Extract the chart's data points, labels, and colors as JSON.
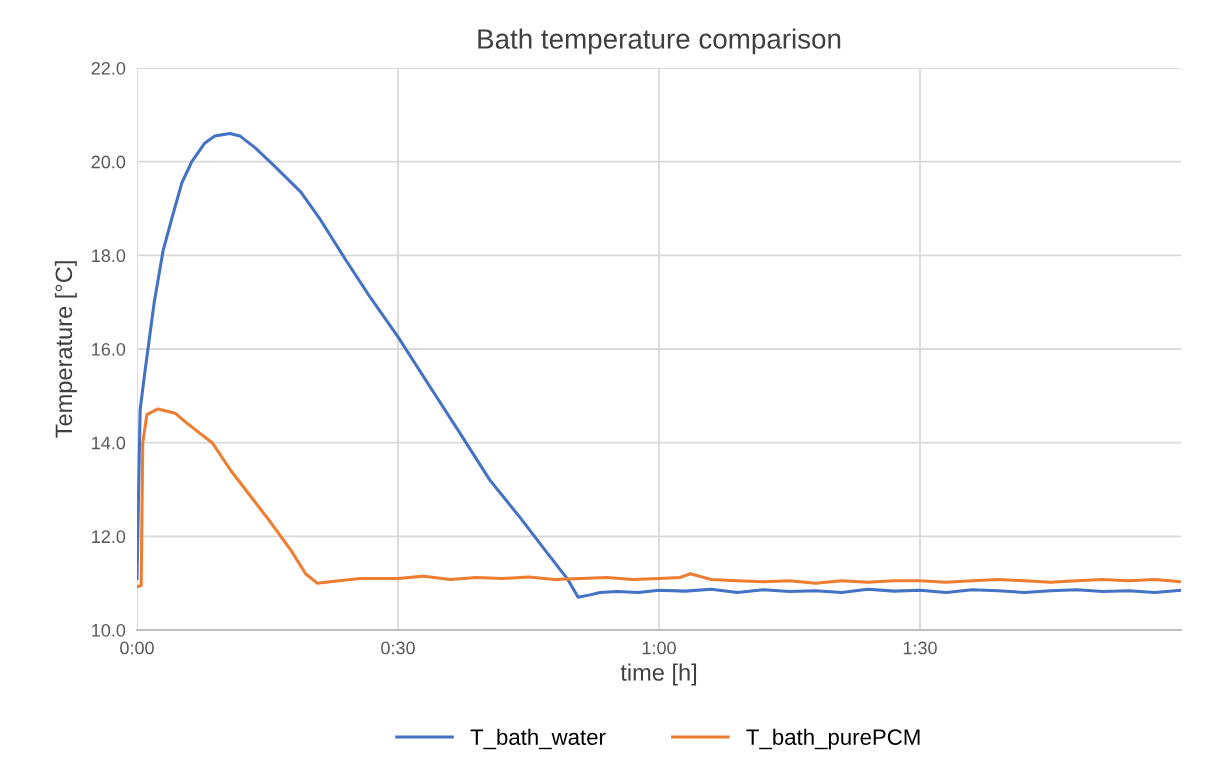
{
  "chart_data": {
    "type": "line",
    "title": "Bath temperature comparison",
    "xlabel": "time [h]",
    "ylabel": "Temperature [°C]",
    "xlim": [
      0,
      2
    ],
    "xticks": [
      {
        "value": 0,
        "label": "0:00"
      },
      {
        "value": 0.5,
        "label": "0:30"
      },
      {
        "value": 1,
        "label": "1:00"
      },
      {
        "value": 1.5,
        "label": "1:30"
      }
    ],
    "ylim": [
      10,
      22
    ],
    "yticks": [
      {
        "value": 10,
        "label": "10.0"
      },
      {
        "value": 12,
        "label": "12.0"
      },
      {
        "value": 14,
        "label": "14.0"
      },
      {
        "value": 16,
        "label": "16.0"
      },
      {
        "value": 18,
        "label": "18.0"
      },
      {
        "value": 20,
        "label": "20.0"
      },
      {
        "value": 22,
        "label": "22.0"
      }
    ],
    "grid": true,
    "legend": "bottom",
    "marker": "none",
    "line_style": "solid",
    "series": [
      {
        "name": "T_bath_water",
        "color": "#4472c4",
        "x": [
          0,
          0.006,
          0.015,
          0.021,
          0.033,
          0.05,
          0.067,
          0.086,
          0.105,
          0.13,
          0.149,
          0.178,
          0.197,
          0.226,
          0.264,
          0.314,
          0.352,
          0.4,
          0.447,
          0.5,
          0.561,
          0.619,
          0.676,
          0.734,
          0.782,
          0.826,
          0.845,
          0.868,
          0.887,
          0.92,
          0.96,
          1.0,
          1.05,
          1.1,
          1.15,
          1.2,
          1.25,
          1.3,
          1.35,
          1.4,
          1.45,
          1.5,
          1.55,
          1.6,
          1.65,
          1.7,
          1.75,
          1.8,
          1.85,
          1.9,
          1.95,
          2.0
        ],
        "values": [
          11.1,
          14.7,
          15.5,
          16.0,
          17.0,
          18.1,
          18.8,
          19.55,
          20.0,
          20.4,
          20.55,
          20.6,
          20.55,
          20.3,
          19.9,
          19.35,
          18.75,
          17.9,
          17.1,
          16.26,
          15.2,
          14.2,
          13.2,
          12.4,
          11.7,
          11.07,
          10.7,
          10.75,
          10.8,
          10.82,
          10.8,
          10.85,
          10.83,
          10.87,
          10.8,
          10.86,
          10.82,
          10.84,
          10.8,
          10.87,
          10.83,
          10.85,
          10.8,
          10.86,
          10.84,
          10.8,
          10.84,
          10.86,
          10.82,
          10.84,
          10.8,
          10.85
        ]
      },
      {
        "name": "T_bath_purePCM",
        "color": "#ed7d31",
        "x": [
          0,
          0.008,
          0.011,
          0.019,
          0.04,
          0.073,
          0.092,
          0.117,
          0.144,
          0.18,
          0.218,
          0.256,
          0.295,
          0.323,
          0.345,
          0.37,
          0.427,
          0.5,
          0.55,
          0.6,
          0.65,
          0.7,
          0.75,
          0.8,
          0.85,
          0.9,
          0.95,
          1.0,
          1.04,
          1.06,
          1.1,
          1.15,
          1.2,
          1.25,
          1.3,
          1.35,
          1.4,
          1.45,
          1.5,
          1.55,
          1.6,
          1.65,
          1.7,
          1.75,
          1.8,
          1.85,
          1.9,
          1.95,
          2.0
        ],
        "values": [
          10.92,
          10.95,
          14.0,
          14.6,
          14.72,
          14.63,
          14.45,
          14.23,
          14.0,
          13.4,
          12.85,
          12.3,
          11.7,
          11.2,
          11.0,
          11.03,
          11.1,
          11.1,
          11.15,
          11.08,
          11.12,
          11.1,
          11.13,
          11.08,
          11.1,
          11.12,
          11.08,
          11.1,
          11.12,
          11.2,
          11.08,
          11.05,
          11.03,
          11.05,
          11.0,
          11.05,
          11.02,
          11.05,
          11.05,
          11.02,
          11.05,
          11.08,
          11.05,
          11.02,
          11.05,
          11.08,
          11.05,
          11.08,
          11.03
        ]
      }
    ]
  }
}
